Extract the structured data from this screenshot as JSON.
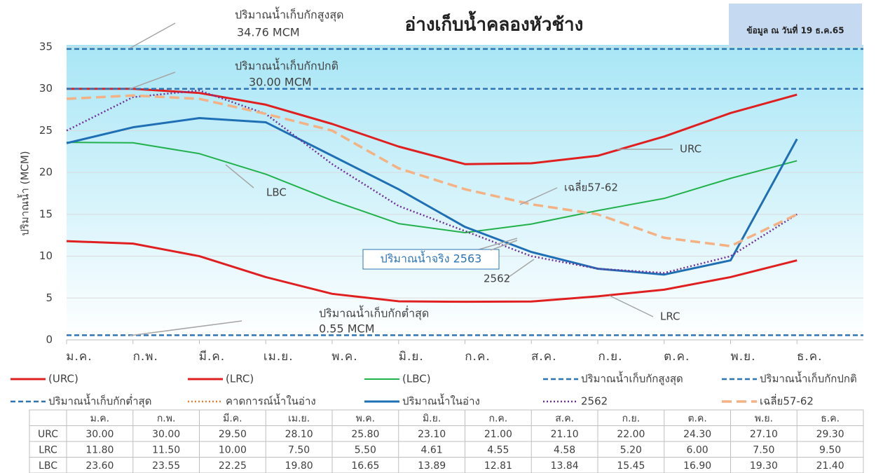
{
  "chart_data": {
    "type": "line",
    "title": "อ่างเก็บน้ำคลองหัวช้าง",
    "info": "ข้อมูล ณ วันที่ 19 ธ.ค.65",
    "y_label": "ปริมาณน้ำ (MCM)",
    "categories": [
      "ม.ค.",
      "ก.พ.",
      "มี.ค.",
      "เม.ย.",
      "พ.ค.",
      "มิ.ย.",
      "ก.ค.",
      "ส.ค.",
      "ก.ย.",
      "ต.ค.",
      "พ.ย.",
      "ธ.ค."
    ],
    "ylim": [
      0,
      35
    ],
    "yticks": [
      0,
      5,
      10,
      15,
      20,
      25,
      30,
      35
    ],
    "grid": true,
    "series": [
      {
        "name": "(URC)",
        "label": "URC",
        "color": "#e02020",
        "style": "solid",
        "values": [
          30,
          30,
          29.5,
          28.1,
          25.8,
          23.1,
          21,
          21.1,
          22,
          24.3,
          27.1,
          29.3
        ],
        "value_labels": [
          "30.00",
          "30.00",
          "29.50",
          "28.10",
          "25.80",
          "23.10",
          "21.00",
          "21.10",
          "22.00",
          "24.30",
          "27.10",
          "29.30"
        ]
      },
      {
        "name": "(LRC)",
        "label": "LRC",
        "color": "#e02020",
        "style": "solid",
        "values": [
          11.8,
          11.5,
          10,
          7.5,
          5.5,
          4.61,
          4.55,
          4.58,
          5.2,
          6,
          7.5,
          9.5
        ],
        "value_labels": [
          "11.80",
          "11.50",
          "10.00",
          "7.50",
          "5.50",
          "4.61",
          "4.55",
          "4.58",
          "5.20",
          "6.00",
          "7.50",
          "9.50"
        ]
      },
      {
        "name": "(LBC)",
        "label": "LBC",
        "color": "#22b14c",
        "style": "thin",
        "values": [
          23.6,
          23.55,
          22.25,
          19.8,
          16.65,
          13.89,
          12.81,
          13.84,
          15.45,
          16.9,
          19.3,
          21.4
        ],
        "value_labels": [
          "23.60",
          "23.55",
          "22.25",
          "19.80",
          "16.65",
          "13.89",
          "12.81",
          "13.84",
          "15.45",
          "16.90",
          "19.30",
          "21.40"
        ]
      },
      {
        "name": "ปริมาณน้ำเก็บกักสูงสุด",
        "color": "#2e75b6",
        "style": "dashed",
        "value": 34.76,
        "value_label": "34.76 MCM"
      },
      {
        "name": "ปริมาณน้ำเก็บกักปกติ",
        "color": "#2e75b6",
        "style": "dashed",
        "value": 30,
        "value_label": "30.00 MCM"
      },
      {
        "name": "ปริมาณน้ำเก็บกักต่ำสุด",
        "color": "#2e75b6",
        "style": "dashed",
        "value": 0.55,
        "value_label": "0.55 MCM"
      },
      {
        "name": "คาดการณ์น้ำในอ่าง",
        "color": "#ed7d31",
        "style": "dotted",
        "values": [
          null,
          null,
          null,
          null,
          null,
          null,
          null,
          null,
          null,
          null,
          null,
          null
        ]
      },
      {
        "name": "ปริมาณน้ำในอ่าง",
        "annotation": "ปริมาณน้ำจริง 2563",
        "color": "#1f6fb5",
        "style": "solid",
        "values": [
          23.5,
          25.4,
          26.5,
          26.0,
          22.0,
          18.0,
          13.5,
          10.5,
          8.5,
          7.8,
          9.5,
          24.0
        ]
      },
      {
        "name": "2562",
        "color": "#7030a0",
        "style": "dotted",
        "values": [
          25.0,
          29.0,
          29.8,
          27.0,
          21.0,
          16.0,
          13.0,
          10.0,
          8.5,
          8.0,
          10.0,
          15.0
        ]
      },
      {
        "name": "เฉลี่ย57-62",
        "color": "#f4b183",
        "style": "long-dashed",
        "values": [
          28.8,
          29.2,
          28.8,
          27.0,
          25.0,
          20.5,
          18.0,
          16.2,
          15.0,
          12.2,
          11.2,
          15.0
        ]
      }
    ]
  }
}
